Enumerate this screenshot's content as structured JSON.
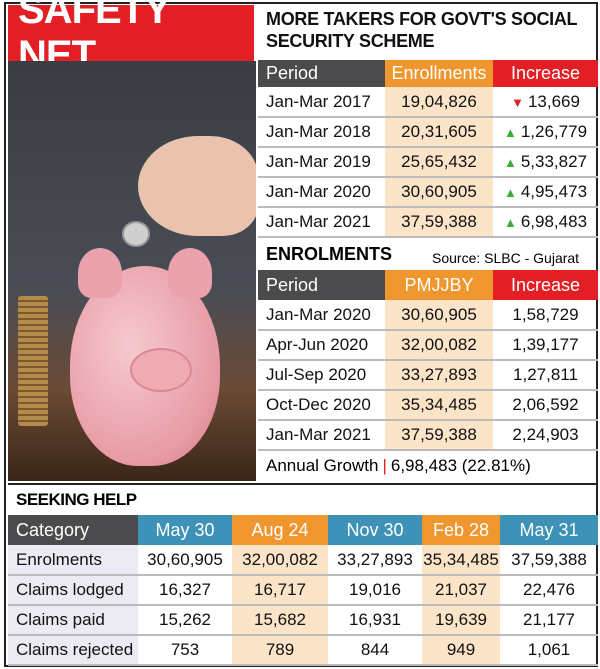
{
  "title": "SAFETY NET",
  "table1": {
    "heading": "MORE TAKERS FOR GOVT'S SOCIAL SECURITY SCHEME",
    "columns": [
      "Period",
      "Enrollments",
      "Increase"
    ],
    "rows": [
      {
        "period": "Jan-Mar 2017",
        "enrollments": "19,04,826",
        "increase": "13,669",
        "trend": "down"
      },
      {
        "period": "Jan-Mar 2018",
        "enrollments": "20,31,605",
        "increase": "1,26,779",
        "trend": "up"
      },
      {
        "period": "Jan-Mar 2019",
        "enrollments": "25,65,432",
        "increase": "5,33,827",
        "trend": "up"
      },
      {
        "period": "Jan-Mar 2020",
        "enrollments": "30,60,905",
        "increase": "4,95,473",
        "trend": "up"
      },
      {
        "period": "Jan-Mar 2021",
        "enrollments": "37,59,388",
        "increase": "6,98,483",
        "trend": "up"
      }
    ]
  },
  "table2": {
    "heading": "ENROLMENTS",
    "source": "Source: SLBC - Gujarat",
    "columns": [
      "Period",
      "PMJJBY",
      "Increase"
    ],
    "rows": [
      {
        "period": "Jan-Mar 2020",
        "pmjjby": "30,60,905",
        "increase": "1,58,729"
      },
      {
        "period": "Apr-Jun 2020",
        "pmjjby": "32,00,082",
        "increase": "1,39,177"
      },
      {
        "period": "Jul-Sep 2020",
        "pmjjby": "33,27,893",
        "increase": "1,27,811"
      },
      {
        "period": "Oct-Dec 2020",
        "pmjjby": "35,34,485",
        "increase": "2,06,592"
      },
      {
        "period": "Jan-Mar 2021",
        "pmjjby": "37,59,388",
        "increase": "2,24,903"
      }
    ],
    "annual_growth_label": "Annual Growth",
    "annual_growth_value": "6,98,483 (22.81%)"
  },
  "table3": {
    "heading": "SEEKING HELP",
    "columns": [
      "Category",
      "May 30",
      "Aug 24",
      "Nov 30",
      "Feb 28",
      "May 31"
    ],
    "rows": [
      {
        "category": "Enrolments",
        "values": [
          "30,60,905",
          "32,00,082",
          "33,27,893",
          "35,34,485",
          "37,59,388"
        ]
      },
      {
        "category": "Claims lodged",
        "values": [
          "16,327",
          "16,717",
          "19,016",
          "21,037",
          "22,476"
        ]
      },
      {
        "category": "Claims paid",
        "values": [
          "15,262",
          "15,682",
          "16,931",
          "19,639",
          "21,177"
        ]
      },
      {
        "category": "Claims rejected",
        "values": [
          "753",
          "789",
          "844",
          "949",
          "1,061"
        ]
      }
    ]
  },
  "colors": {
    "red": "#e31e24",
    "orange": "#f0962e",
    "blue": "#3e92b8",
    "dark": "#4b4b4d",
    "up": "#3daa3a"
  }
}
